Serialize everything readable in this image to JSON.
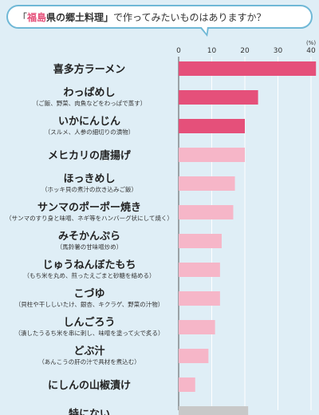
{
  "title": {
    "open": "「",
    "prefecture": "福島",
    "middle": "県の郷土料理」",
    "rest": "で作ってみたいものはありますか？"
  },
  "chart_data": {
    "type": "bar",
    "orientation": "horizontal",
    "unit_label": "(%)",
    "xlim": [
      0,
      40
    ],
    "ticks": [
      0,
      10,
      20,
      30,
      40
    ],
    "categories": [
      {
        "name": "喜多方ラーメン",
        "sub": "",
        "value": 41.5,
        "color": "#e5507a"
      },
      {
        "name": "わっぱめし",
        "sub": "（ご飯、野菜、肉魚などをわっぱで蒸す）",
        "value": 24,
        "color": "#e5507a"
      },
      {
        "name": "いかにんじん",
        "sub": "（スルメ、人参の細切りの漬物）",
        "value": 20,
        "color": "#e5507a"
      },
      {
        "name": "メヒカリの唐揚げ",
        "sub": "",
        "value": 20,
        "color": "#f6b6c8"
      },
      {
        "name": "ほっきめし",
        "sub": "（ホッキ貝の煮汁の炊き込みご飯）",
        "value": 17,
        "color": "#f6b6c8"
      },
      {
        "name": "サンマのポーポー焼き",
        "sub": "（サンマのすり身と味噌、ネギ等をハンバーグ状にして焼く）",
        "value": 16.5,
        "color": "#f6b6c8"
      },
      {
        "name": "みそかんぷら",
        "sub": "（馬鈴薯の甘味噌炒め）",
        "value": 13,
        "color": "#f6b6c8"
      },
      {
        "name": "じゅうねんぼたもち",
        "sub": "（もち米を丸め、煎ったえごまと砂糖を絡める）",
        "value": 12.5,
        "color": "#f6b6c8"
      },
      {
        "name": "こづゆ",
        "sub": "（貝柱や干ししいたけ、銀杏、キクラゲ、野菜の汁物）",
        "value": 12.5,
        "color": "#f6b6c8"
      },
      {
        "name": "しんごろう",
        "sub": "（潰したうるち米を串に刺し、味噌を塗って火で炙る）",
        "value": 11,
        "color": "#f6b6c8"
      },
      {
        "name": "どぶ汁",
        "sub": "（あんこうの肝の汁で具材を煮込む）",
        "value": 9,
        "color": "#f6b6c8"
      },
      {
        "name": "にしんの山椒漬け",
        "sub": "",
        "value": 5,
        "color": "#f6b6c8"
      },
      {
        "name": "特にない",
        "sub": "",
        "value": 21,
        "color": "#c8c8c8"
      }
    ]
  }
}
